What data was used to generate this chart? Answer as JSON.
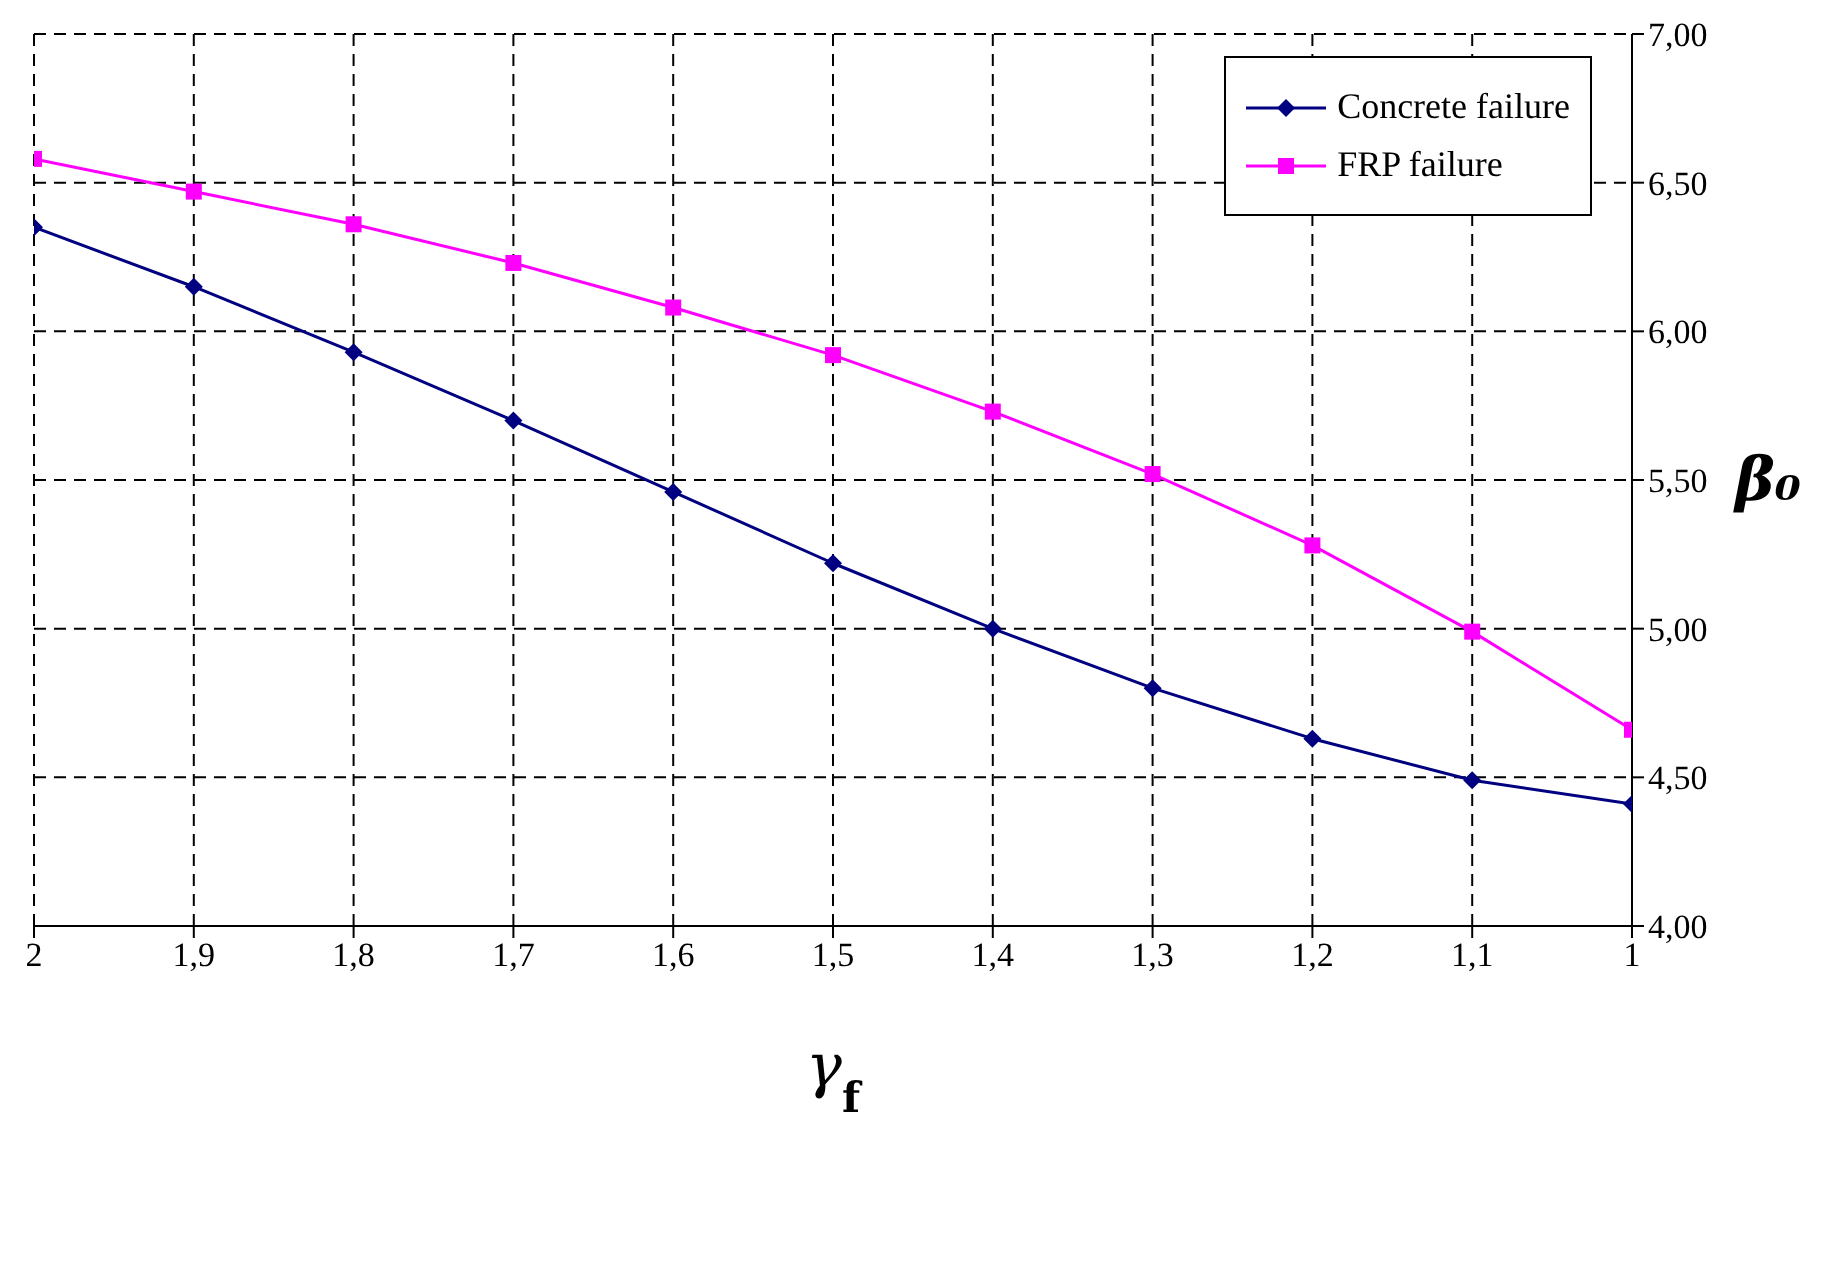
{
  "chart_data": {
    "type": "line",
    "xlabel": "γ$_{f}$",
    "ylabel": "β₀",
    "x": [
      2,
      1.9,
      1.8,
      1.7,
      1.6,
      1.5,
      1.4,
      1.3,
      1.2,
      1.1,
      1
    ],
    "xlim": [
      2,
      1
    ],
    "xticks": [
      2,
      {
        "value": 1.9,
        "label": "1,9"
      },
      {
        "value": 1.8,
        "label": "1,8"
      },
      {
        "value": 1.7,
        "label": "1,7"
      },
      {
        "value": 1.6,
        "label": "1,6"
      },
      {
        "value": 1.5,
        "label": "1,5"
      },
      {
        "value": 1.4,
        "label": "1,4"
      },
      {
        "value": 1.3,
        "label": "1,3"
      },
      {
        "value": 1.2,
        "label": "1,2"
      },
      {
        "value": 1.1,
        "label": "1,1"
      },
      1
    ],
    "ylim": [
      4,
      7
    ],
    "yticks": [
      {
        "value": 4,
        "label": "4,00"
      },
      {
        "value": 4.5,
        "label": "4,50"
      },
      {
        "value": 5,
        "label": "5,00"
      },
      {
        "value": 5.5,
        "label": "5,50"
      },
      {
        "value": 6,
        "label": "6,00"
      },
      {
        "value": 6.5,
        "label": "6,50"
      },
      {
        "value": 7,
        "label": "7,00"
      }
    ],
    "series": [
      {
        "name": "Concrete failure",
        "color": "#000080",
        "marker": "diamond",
        "values": [
          6.35,
          6.15,
          5.93,
          5.7,
          5.46,
          5.22,
          5.0,
          4.8,
          4.63,
          4.49,
          4.41
        ]
      },
      {
        "name": "FRP failure",
        "color": "#ff00ff",
        "marker": "square",
        "values": [
          6.58,
          6.47,
          6.36,
          6.23,
          6.08,
          5.92,
          5.73,
          5.52,
          5.28,
          4.99,
          4.66
        ]
      }
    ],
    "grid": true,
    "legend": "top right",
    "line_style": "solid"
  }
}
